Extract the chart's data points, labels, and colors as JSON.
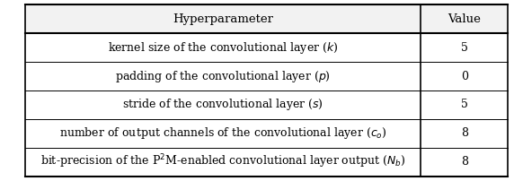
{
  "header": [
    "Hyperparameter",
    "Value"
  ],
  "rows": [
    [
      "kernel size of the convolutional layer ($k$)",
      "5"
    ],
    [
      "padding of the convolutional layer ($p$)",
      "0"
    ],
    [
      "stride of the convolutional layer ($s$)",
      "5"
    ],
    [
      "number of output channels of the convolutional layer ($c_o$)",
      "8"
    ],
    [
      "bit-precision of the P$^2$M-enabled convolutional layer output ($N_b$)",
      "8"
    ]
  ],
  "col_split": 0.82,
  "background_color": "#ffffff",
  "header_bg": "#f2f2f2",
  "line_color": "#000000",
  "text_color": "#000000",
  "font_size": 9.0,
  "header_font_size": 9.5
}
